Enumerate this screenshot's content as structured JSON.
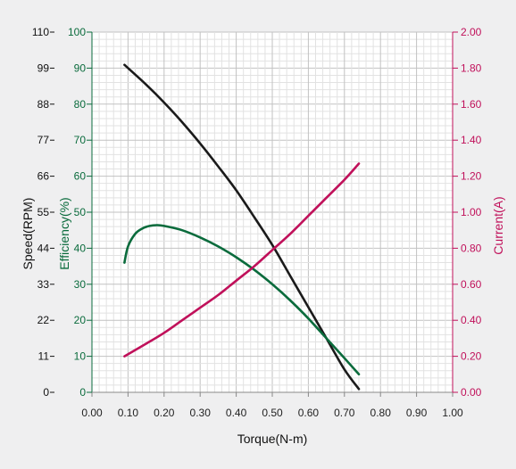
{
  "chart_data": {
    "type": "line",
    "xlabel": "Torque(N-m)",
    "xlim": [
      0,
      1.0
    ],
    "x_ticks": [
      "0.00",
      "0.10",
      "0.20",
      "0.30",
      "0.40",
      "0.50",
      "0.60",
      "0.70",
      "0.80",
      "0.90",
      "1.00"
    ],
    "axes": {
      "speed": {
        "label": "Speed(RPM)",
        "color": "#111111",
        "ylim": [
          0,
          110
        ],
        "ticks": [
          "0",
          "11",
          "22",
          "33",
          "44",
          "55",
          "66",
          "77",
          "88",
          "99",
          "110"
        ]
      },
      "efficiency": {
        "label": "Efficiency(%)",
        "color": "#0a6b3c",
        "ylim": [
          0,
          100
        ],
        "ticks": [
          "0",
          "10",
          "20",
          "30",
          "40",
          "50",
          "60",
          "70",
          "80",
          "90",
          "100"
        ]
      },
      "current": {
        "label": "Current(A)",
        "color": "#c0105a",
        "ylim": [
          0,
          2.0
        ],
        "ticks": [
          "0.00",
          "0.20",
          "0.40",
          "0.60",
          "0.80",
          "1.00",
          "1.20",
          "1.40",
          "1.60",
          "1.80",
          "2.00"
        ]
      }
    },
    "grid": true,
    "series": [
      {
        "axis": "speed",
        "color": "#1a1a1a",
        "x": [
          0.09,
          0.15,
          0.2,
          0.25,
          0.3,
          0.35,
          0.4,
          0.45,
          0.5,
          0.55,
          0.6,
          0.65,
          0.7,
          0.74
        ],
        "y": [
          100,
          94,
          88.5,
          82.5,
          76,
          69,
          61.7,
          53.5,
          45,
          35.5,
          26,
          16.5,
          7,
          1
        ]
      },
      {
        "axis": "efficiency",
        "color": "#0a6b3c",
        "x": [
          0.09,
          0.1,
          0.12,
          0.14,
          0.16,
          0.18,
          0.2,
          0.25,
          0.3,
          0.35,
          0.4,
          0.45,
          0.5,
          0.55,
          0.6,
          0.65,
          0.7,
          0.74
        ],
        "y": [
          36,
          40.5,
          44,
          45.5,
          46.2,
          46.4,
          46.2,
          45,
          43,
          40.5,
          37.5,
          34,
          30,
          25.5,
          20.5,
          15,
          9.5,
          5
        ]
      },
      {
        "axis": "current",
        "color": "#c0105a",
        "x": [
          0.09,
          0.15,
          0.2,
          0.25,
          0.3,
          0.35,
          0.4,
          0.45,
          0.5,
          0.55,
          0.6,
          0.65,
          0.7,
          0.74
        ],
        "y": [
          0.2,
          0.27,
          0.33,
          0.4,
          0.47,
          0.54,
          0.62,
          0.7,
          0.79,
          0.88,
          0.98,
          1.08,
          1.18,
          1.27
        ]
      }
    ]
  }
}
